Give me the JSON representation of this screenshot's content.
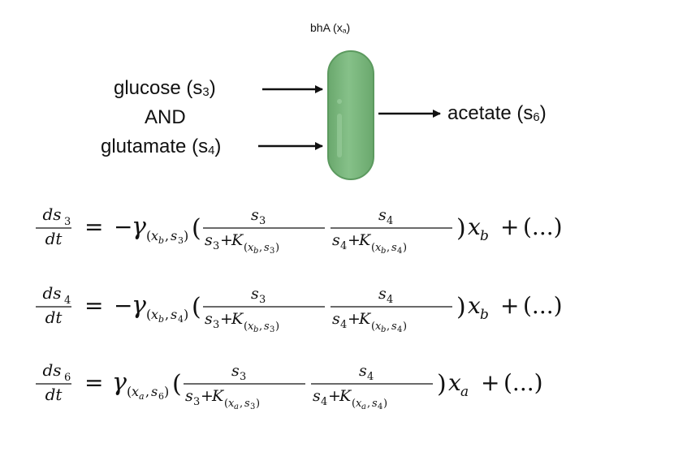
{
  "organism": {
    "name": "bhA",
    "var": "x",
    "var_sub": "a"
  },
  "inputs": [
    {
      "name": "glucose",
      "var": "s",
      "var_sub": "3"
    },
    {
      "name": "glutamate",
      "var": "s",
      "var_sub": "4"
    }
  ],
  "logic": "AND",
  "output": {
    "name": "acetate",
    "var": "s",
    "var_sub": "6"
  },
  "equations": [
    {
      "lhs": {
        "num": "ds",
        "num_sub": "3",
        "den": "dt"
      },
      "sign": "−",
      "gamma_sub": "(x_b, s_3)",
      "frac1": {
        "num": "s_3",
        "den": "s_3 + K_(x_b, s_3)"
      },
      "frac2": {
        "num": "s_4",
        "den": "s_4 + K_(x_b, s_4)"
      },
      "tail": "x_b + (...)"
    },
    {
      "lhs": {
        "num": "ds",
        "num_sub": "4",
        "den": "dt"
      },
      "sign": "−",
      "gamma_sub": "(x_b, s_4)",
      "frac1": {
        "num": "s_3",
        "den": "s_3 + K_(x_b, s_3)"
      },
      "frac2": {
        "num": "s_4",
        "den": "s_4 + K_(x_b, s_4)"
      },
      "tail": "x_b + (...)"
    },
    {
      "lhs": {
        "num": "ds",
        "num_sub": "6",
        "den": "dt"
      },
      "sign": "",
      "gamma_sub": "(x_a, s_6)",
      "frac1": {
        "num": "s_3",
        "den": "s_3 + K_(x_a, s_3)"
      },
      "frac2": {
        "num": "s_4",
        "den": "s_4 + K_(x_a, s_4)"
      },
      "tail": "x_a + (...)"
    }
  ],
  "colors": {
    "cell_fill": "#7db87f",
    "cell_stroke": "#5c9a5f",
    "arrow": "#111111"
  }
}
